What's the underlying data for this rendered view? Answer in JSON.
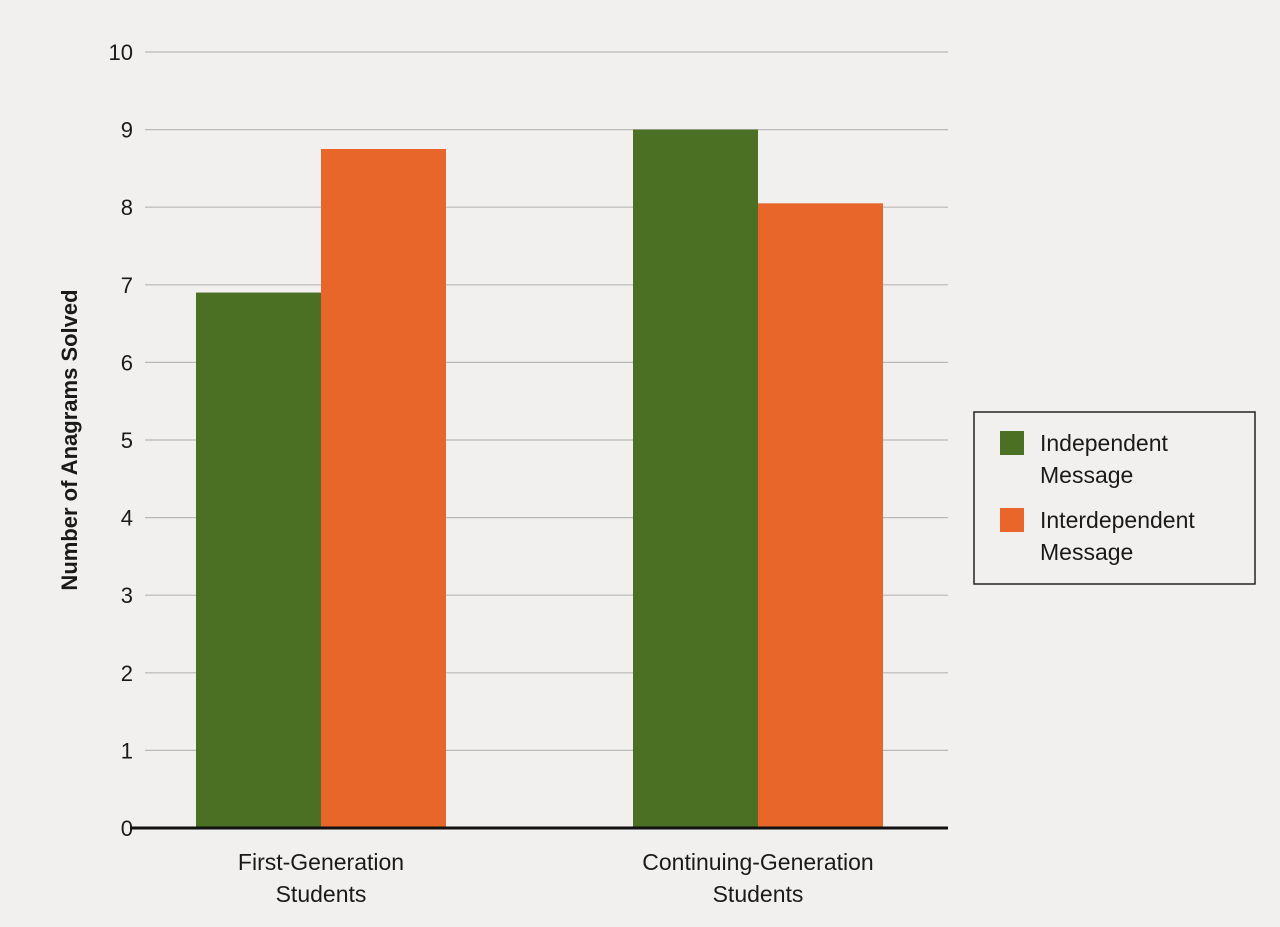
{
  "chart_data": {
    "type": "bar",
    "title": "",
    "xlabel": "",
    "ylabel": "Number of Anagrams Solved",
    "ylim": [
      0,
      10
    ],
    "yticks": [
      0,
      1,
      2,
      3,
      4,
      5,
      6,
      7,
      8,
      9,
      10
    ],
    "grid": true,
    "categories": [
      [
        "First-Generation",
        "Students"
      ],
      [
        "Continuing-Generation",
        "Students"
      ]
    ],
    "series": [
      {
        "name": [
          "Independent",
          "Message"
        ],
        "color": "#4c7023",
        "values": [
          6.9,
          9.0
        ]
      },
      {
        "name": [
          "Interdependent",
          "Message"
        ],
        "color": "#e8662a",
        "values": [
          8.75,
          8.05
        ]
      }
    ],
    "legend_position": "right"
  },
  "colors": {
    "background": "#f1f0ee",
    "grid": "#b8b8b8",
    "axis": "#111111",
    "legend_border": "#222222"
  }
}
